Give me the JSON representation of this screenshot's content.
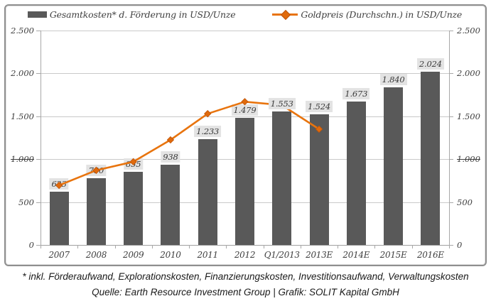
{
  "chart_data": {
    "type": "bar+line combo",
    "categories": [
      "2007",
      "2008",
      "2009",
      "2010",
      "2011",
      "2012",
      "Q1/2013",
      "2013E",
      "2014E",
      "2015E",
      "2016E"
    ],
    "series": [
      {
        "name": "Gesamtkosten* d. Förderung in USD/Unze",
        "type": "bar",
        "color": "#595959",
        "values": [
          623,
          780,
          855,
          938,
          1233,
          1479,
          1553,
          1524,
          1673,
          1840,
          2024
        ],
        "labels": [
          "623",
          "780",
          "855",
          "938",
          "1.233",
          "1.479",
          "1.553",
          "1.524",
          "1.673",
          "1.840",
          "2.024"
        ]
      },
      {
        "name": "Goldpreis (Durchschn.) in USD/Unze",
        "type": "line",
        "color": "#e8740e",
        "values": [
          695,
          870,
          970,
          1225,
          1530,
          1670,
          1630,
          1350,
          null,
          null,
          null
        ]
      }
    ],
    "ylim": [
      0,
      2500
    ],
    "y_ticks": [
      {
        "label": "0",
        "value": 0,
        "struck": false
      },
      {
        "label": "500",
        "value": 500,
        "struck": false
      },
      {
        "label": "1.000",
        "value": 1000,
        "struck": true
      },
      {
        "label": "1.500",
        "value": 1500,
        "struck": false
      },
      {
        "label": "2.000",
        "value": 2000,
        "struck": false
      },
      {
        "label": "2.500",
        "value": 2500,
        "struck": false
      }
    ],
    "grid": true,
    "legend_position": "top",
    "value_label_background": "#e3e3e3"
  },
  "footer": {
    "footnote": "* inkl. Förderaufwand, Explorationskosten, Finanzierungskosten, Investitionsaufwand, Verwaltungskosten",
    "source": "Quelle: Earth Resource Investment Group | Grafik: SOLIT Kapital GmbH"
  },
  "colors": {
    "bar": "#595959",
    "line": "#e8740e",
    "marker_fill": "#e06a0c",
    "marker_stroke": "#bf5409",
    "grid": "#c9c9c9",
    "axis": "#a8a8a8",
    "text": "#3f3f3f",
    "border": "#8f8f8f"
  }
}
